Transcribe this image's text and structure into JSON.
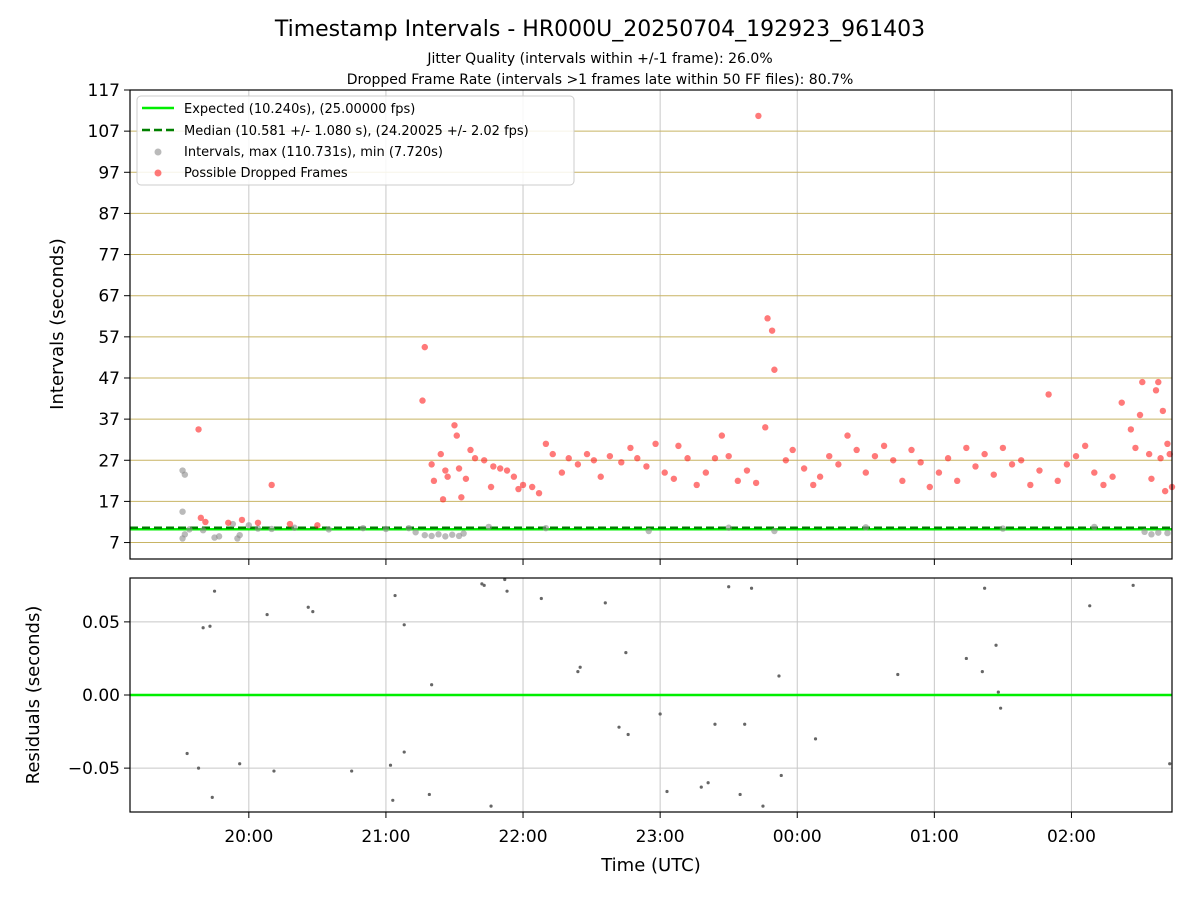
{
  "title": "Timestamp Intervals - HR000U_20250704_192923_961403",
  "subtitle1": "Jitter Quality (intervals within +/-1 frame): 26.0%",
  "subtitle2": "Dropped Frame Rate (intervals >1 frames late within 50 FF files): 80.7%",
  "colors": {
    "expected": "#00ee00",
    "median": "#008000",
    "intervals": "#8c8c8c",
    "dropped": "#ff2020",
    "hgrid": "#c8b464",
    "vgrid": "#c8c8c8",
    "residual": "#666666"
  },
  "chart_data": [
    {
      "type": "scatter",
      "ylabel": "Intervals (seconds)",
      "xlabel": "",
      "xlim": [
        "19:08",
        "02:44"
      ],
      "ylim": [
        3.0,
        117
      ],
      "yticks": [
        7,
        17,
        27,
        37,
        47,
        57,
        67,
        77,
        87,
        97,
        107,
        117
      ],
      "xticks": [
        "20:00",
        "21:00",
        "22:00",
        "23:00",
        "00:00",
        "01:00",
        "02:00"
      ],
      "grid": true,
      "legend_position": "top-left",
      "legend": [
        "Expected (10.240s), (25.00000 fps)",
        "Median (10.581 +/- 1.080 s), (24.20025 +/- 2.02 fps)",
        "Intervals, max (110.731s), min (7.720s)",
        "Possible Dropped Frames"
      ],
      "expected_line": 10.24,
      "median_line": 10.581,
      "series": [
        {
          "name": "Intervals, max (110.731s), min (7.720s)",
          "points": [
            [
              "19:31",
              24.5
            ],
            [
              "19:32",
              23.5
            ],
            [
              "19:31",
              14.5
            ],
            [
              "19:31",
              8.0
            ],
            [
              "19:32",
              9.0
            ],
            [
              "19:34",
              10.2
            ],
            [
              "19:40",
              10.0
            ],
            [
              "19:45",
              8.2
            ],
            [
              "19:47",
              8.5
            ],
            [
              "19:53",
              11.5
            ],
            [
              "19:55",
              8.0
            ],
            [
              "19:56",
              8.8
            ],
            [
              "20:00",
              11.2
            ],
            [
              "20:04",
              10.4
            ],
            [
              "20:10",
              10.3
            ],
            [
              "20:20",
              10.6
            ],
            [
              "20:35",
              10.2
            ],
            [
              "20:50",
              10.5
            ],
            [
              "21:00",
              10.3
            ],
            [
              "21:10",
              10.5
            ],
            [
              "21:13",
              9.5
            ],
            [
              "21:17",
              8.8
            ],
            [
              "21:20",
              8.6
            ],
            [
              "21:23",
              9.0
            ],
            [
              "21:26",
              8.5
            ],
            [
              "21:29",
              8.9
            ],
            [
              "21:32",
              8.6
            ],
            [
              "21:34",
              9.2
            ],
            [
              "21:45",
              10.8
            ],
            [
              "22:10",
              10.5
            ],
            [
              "22:55",
              9.8
            ],
            [
              "23:30",
              10.6
            ],
            [
              "23:50",
              9.8
            ],
            [
              "00:30",
              10.7
            ],
            [
              "01:30",
              10.4
            ],
            [
              "02:10",
              10.8
            ],
            [
              "02:32",
              9.6
            ],
            [
              "02:35",
              9.0
            ],
            [
              "02:38",
              9.4
            ],
            [
              "02:42",
              9.3
            ]
          ]
        },
        {
          "name": "Possible Dropped Frames",
          "points": [
            [
              "19:38",
              34.5
            ],
            [
              "19:39",
              13.0
            ],
            [
              "19:41",
              12.0
            ],
            [
              "19:51",
              11.8
            ],
            [
              "19:57",
              12.5
            ],
            [
              "20:04",
              11.8
            ],
            [
              "20:10",
              21.0
            ],
            [
              "20:18",
              11.5
            ],
            [
              "20:30",
              11.2
            ],
            [
              "21:17",
              54.5
            ],
            [
              "21:16",
              41.5
            ],
            [
              "21:20",
              26.0
            ],
            [
              "21:24",
              28.5
            ],
            [
              "21:27",
              23.0
            ],
            [
              "21:26",
              24.5
            ],
            [
              "21:25",
              17.5
            ],
            [
              "21:21",
              22.0
            ],
            [
              "21:30",
              35.5
            ],
            [
              "21:31",
              33.0
            ],
            [
              "21:32",
              25.0
            ],
            [
              "21:33",
              18.0
            ],
            [
              "21:35",
              22.5
            ],
            [
              "21:37",
              29.5
            ],
            [
              "21:39",
              27.5
            ],
            [
              "21:43",
              27.0
            ],
            [
              "21:47",
              25.5
            ],
            [
              "21:50",
              25.0
            ],
            [
              "21:53",
              24.5
            ],
            [
              "21:56",
              23.0
            ],
            [
              "21:46",
              20.5
            ],
            [
              "21:58",
              20.0
            ],
            [
              "22:00",
              21.0
            ],
            [
              "22:04",
              20.5
            ],
            [
              "22:07",
              19.0
            ],
            [
              "22:10",
              31.0
            ],
            [
              "22:13",
              28.5
            ],
            [
              "22:17",
              24.0
            ],
            [
              "22:20",
              27.5
            ],
            [
              "22:24",
              26.0
            ],
            [
              "22:28",
              28.5
            ],
            [
              "22:31",
              27.0
            ],
            [
              "22:34",
              23.0
            ],
            [
              "22:38",
              28.0
            ],
            [
              "22:43",
              26.5
            ],
            [
              "22:47",
              30.0
            ],
            [
              "22:50",
              27.5
            ],
            [
              "22:54",
              25.5
            ],
            [
              "22:58",
              31.0
            ],
            [
              "23:02",
              24.0
            ],
            [
              "23:06",
              22.5
            ],
            [
              "23:08",
              30.5
            ],
            [
              "23:12",
              27.5
            ],
            [
              "23:16",
              21.0
            ],
            [
              "23:20",
              24.0
            ],
            [
              "23:24",
              27.5
            ],
            [
              "23:27",
              33.0
            ],
            [
              "23:30",
              28.0
            ],
            [
              "23:34",
              22.0
            ],
            [
              "23:38",
              24.5
            ],
            [
              "23:42",
              21.5
            ],
            [
              "23:46",
              35.0
            ],
            [
              "23:47",
              61.5
            ],
            [
              "23:49",
              58.5
            ],
            [
              "23:50",
              49.0
            ],
            [
              "23:43",
              110.7
            ],
            [
              "23:55",
              27.0
            ],
            [
              "23:58",
              29.5
            ],
            [
              "00:03",
              25.0
            ],
            [
              "00:07",
              21.0
            ],
            [
              "00:10",
              23.0
            ],
            [
              "00:14",
              28.0
            ],
            [
              "00:18",
              26.0
            ],
            [
              "00:22",
              33.0
            ],
            [
              "00:26",
              29.5
            ],
            [
              "00:30",
              24.0
            ],
            [
              "00:34",
              28.0
            ],
            [
              "00:38",
              30.5
            ],
            [
              "00:42",
              27.0
            ],
            [
              "00:46",
              22.0
            ],
            [
              "00:50",
              29.5
            ],
            [
              "00:54",
              26.5
            ],
            [
              "00:58",
              20.5
            ],
            [
              "01:02",
              24.0
            ],
            [
              "01:06",
              27.5
            ],
            [
              "01:10",
              22.0
            ],
            [
              "01:14",
              30.0
            ],
            [
              "01:18",
              25.5
            ],
            [
              "01:22",
              28.5
            ],
            [
              "01:26",
              23.5
            ],
            [
              "01:30",
              30.0
            ],
            [
              "01:34",
              26.0
            ],
            [
              "01:38",
              27.0
            ],
            [
              "01:42",
              21.0
            ],
            [
              "01:46",
              24.5
            ],
            [
              "01:50",
              43.0
            ],
            [
              "01:54",
              22.0
            ],
            [
              "01:58",
              26.0
            ],
            [
              "02:02",
              28.0
            ],
            [
              "02:06",
              30.5
            ],
            [
              "02:10",
              24.0
            ],
            [
              "02:14",
              21.0
            ],
            [
              "02:18",
              23.0
            ],
            [
              "02:22",
              41.0
            ],
            [
              "02:26",
              34.5
            ],
            [
              "02:28",
              30.0
            ],
            [
              "02:30",
              38.0
            ],
            [
              "02:31",
              46.0
            ],
            [
              "02:34",
              28.5
            ],
            [
              "02:35",
              22.5
            ],
            [
              "02:37",
              44.0
            ],
            [
              "02:38",
              46.0
            ],
            [
              "02:39",
              27.5
            ],
            [
              "02:40",
              39.0
            ],
            [
              "02:42",
              31.0
            ],
            [
              "02:43",
              28.5
            ],
            [
              "02:44",
              20.5
            ],
            [
              "02:41",
              19.5
            ]
          ]
        }
      ]
    },
    {
      "type": "scatter",
      "ylabel": "Residuals (seconds)",
      "xlabel": "Time (UTC)",
      "xlim": [
        "19:08",
        "02:44"
      ],
      "ylim": [
        -0.08,
        0.08
      ],
      "yticks": [
        0.05,
        0.0,
        -0.05
      ],
      "ytick_labels": [
        "0.05",
        "0.00",
        "−0.05"
      ],
      "xticks": [
        "20:00",
        "21:00",
        "22:00",
        "23:00",
        "00:00",
        "01:00",
        "02:00"
      ],
      "grid": true,
      "zero_line": 0.0,
      "series": [
        {
          "name": "",
          "points": [
            [
              "19:45",
              0.071
            ],
            [
              "19:43",
              0.047
            ],
            [
              "19:40",
              0.046
            ],
            [
              "20:08",
              0.055
            ],
            [
              "20:26",
              0.06
            ],
            [
              "20:28",
              0.057
            ],
            [
              "21:04",
              0.068
            ],
            [
              "21:08",
              0.048
            ],
            [
              "21:42",
              0.076
            ],
            [
              "21:43",
              0.075
            ],
            [
              "21:46",
              -0.076
            ],
            [
              "21:52",
              0.079
            ],
            [
              "21:53",
              0.071
            ],
            [
              "22:08",
              0.066
            ],
            [
              "22:24",
              0.016
            ],
            [
              "22:25",
              0.019
            ],
            [
              "22:36",
              0.063
            ],
            [
              "22:42",
              -0.022
            ],
            [
              "22:45",
              0.029
            ],
            [
              "22:46",
              -0.027
            ],
            [
              "23:00",
              -0.013
            ],
            [
              "23:03",
              -0.066
            ],
            [
              "23:18",
              -0.063
            ],
            [
              "23:21",
              -0.06
            ],
            [
              "23:24",
              -0.02
            ],
            [
              "23:30",
              0.074
            ],
            [
              "23:35",
              -0.068
            ],
            [
              "23:37",
              -0.02
            ],
            [
              "23:40",
              0.073
            ],
            [
              "23:45",
              -0.076
            ],
            [
              "23:52",
              0.013
            ],
            [
              "23:53",
              -0.055
            ],
            [
              "00:08",
              -0.03
            ],
            [
              "00:44",
              0.014
            ],
            [
              "01:14",
              0.025
            ],
            [
              "01:22",
              0.073
            ],
            [
              "01:21",
              0.016
            ],
            [
              "01:27",
              0.034
            ],
            [
              "01:28",
              0.002
            ],
            [
              "01:29",
              -0.009
            ],
            [
              "02:08",
              0.061
            ],
            [
              "02:27",
              0.075
            ],
            [
              "02:43",
              -0.047
            ],
            [
              "21:08",
              -0.039
            ],
            [
              "21:03",
              -0.072
            ],
            [
              "21:19",
              -0.068
            ],
            [
              "21:20",
              0.007
            ],
            [
              "20:11",
              -0.052
            ],
            [
              "19:33",
              -0.04
            ],
            [
              "19:38",
              -0.05
            ],
            [
              "19:44",
              -0.07
            ],
            [
              "20:45",
              -0.052
            ],
            [
              "21:02",
              -0.048
            ],
            [
              "19:56",
              -0.047
            ]
          ]
        }
      ]
    }
  ]
}
